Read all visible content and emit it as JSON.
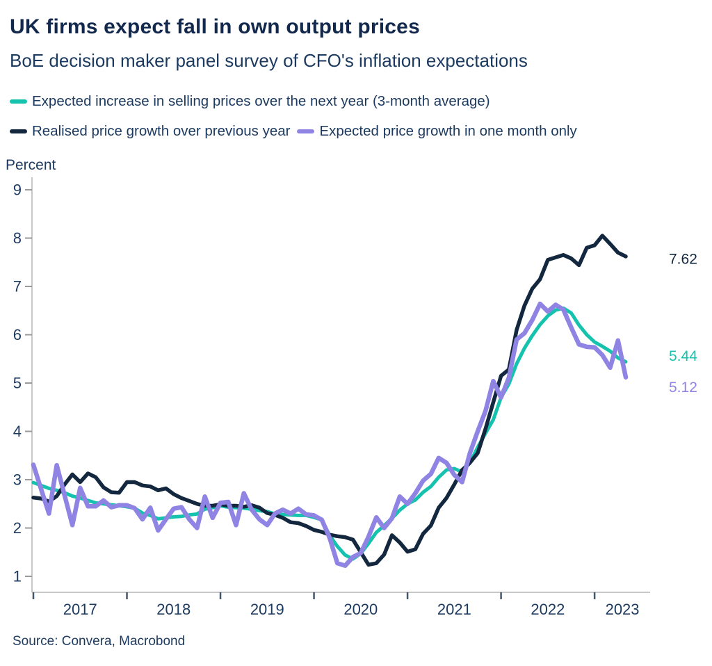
{
  "title": "UK firms expect fall in own output prices",
  "subtitle": "BoE decision maker panel survey of CFO's inflation expectations",
  "y_axis_title": "Percent",
  "source": "Source: Convera, Macrobond",
  "colors": {
    "navy": "#13283F",
    "teal": "#15C2AE",
    "purple": "#8F83E3",
    "title_text": "#12294D",
    "body_text": "#1C3A5F",
    "axis_line": "#C8C8C8",
    "y_tick": "#9A9A9A",
    "x_tick": "#44566B"
  },
  "legend": {
    "row1": [
      {
        "label": "Expected increase in selling prices over the next year (3-month average)",
        "color_key": "teal"
      }
    ],
    "row2": [
      {
        "label": "Realised price growth over previous year",
        "color_key": "navy"
      },
      {
        "label": "Expected price growth in one month only",
        "color_key": "purple"
      }
    ]
  },
  "end_labels": [
    {
      "text": "7.62",
      "value": 7.62,
      "color_key": "navy"
    },
    {
      "text": "5.44",
      "value": 5.44,
      "color_key": "teal"
    },
    {
      "text": "5.12",
      "value": 5.12,
      "color_key": "purple"
    }
  ],
  "chart_data": {
    "type": "line",
    "title": "UK firms expect fall in own output prices",
    "subtitle": "BoE decision maker panel survey of CFO's inflation expectations",
    "ylabel": "Percent",
    "ylim": [
      1,
      9
    ],
    "y_ticks": [
      9,
      8,
      7,
      6,
      5,
      4,
      3,
      2,
      1
    ],
    "x_frequency": "monthly",
    "x_start": "2017-01",
    "x_end": "2023-05",
    "x_tick_years": [
      "2017",
      "2018",
      "2019",
      "2020",
      "2021",
      "2022",
      "2023"
    ],
    "x_tick_month_indices": [
      0,
      12,
      24,
      36,
      48,
      60,
      72
    ],
    "grid": false,
    "legend_position": "top-left",
    "series": [
      {
        "name": "Expected increase in selling prices over the next year (3-month average)",
        "color_key": "teal",
        "end_value": 5.44,
        "values": [
          2.94,
          2.88,
          2.82,
          2.78,
          2.73,
          2.66,
          2.62,
          2.57,
          2.52,
          2.5,
          2.48,
          2.46,
          2.44,
          2.41,
          2.31,
          2.26,
          2.19,
          2.21,
          2.23,
          2.24,
          2.27,
          2.29,
          2.39,
          2.42,
          2.46,
          2.43,
          2.42,
          2.41,
          2.39,
          2.36,
          2.34,
          2.29,
          2.28,
          2.27,
          2.26,
          2.26,
          2.22,
          2.17,
          1.85,
          1.62,
          1.44,
          1.36,
          1.47,
          1.68,
          1.91,
          2.05,
          2.2,
          2.37,
          2.5,
          2.58,
          2.74,
          2.86,
          3.05,
          3.2,
          3.23,
          3.16,
          3.35,
          3.67,
          3.96,
          4.24,
          4.7,
          4.98,
          5.4,
          5.72,
          5.98,
          6.21,
          6.39,
          6.51,
          6.55,
          6.45,
          6.2,
          6.0,
          5.85,
          5.76,
          5.66,
          5.52,
          5.44
        ]
      },
      {
        "name": "Realised price growth over previous year",
        "color_key": "navy",
        "end_value": 7.62,
        "values": [
          2.63,
          2.61,
          2.55,
          2.66,
          2.9,
          3.11,
          2.95,
          3.13,
          3.05,
          2.84,
          2.74,
          2.73,
          2.95,
          2.95,
          2.88,
          2.86,
          2.78,
          2.82,
          2.7,
          2.62,
          2.56,
          2.5,
          2.46,
          2.46,
          2.49,
          2.46,
          2.46,
          2.44,
          2.47,
          2.42,
          2.31,
          2.27,
          2.21,
          2.12,
          2.1,
          2.04,
          1.96,
          1.92,
          1.86,
          1.83,
          1.81,
          1.76,
          1.5,
          1.24,
          1.27,
          1.45,
          1.85,
          1.7,
          1.51,
          1.56,
          1.88,
          2.05,
          2.42,
          2.62,
          2.9,
          3.2,
          3.35,
          3.55,
          4.05,
          4.6,
          5.15,
          5.28,
          6.1,
          6.6,
          6.95,
          7.15,
          7.55,
          7.6,
          7.65,
          7.58,
          7.44,
          7.8,
          7.85,
          8.05,
          7.88,
          7.7,
          7.62
        ]
      },
      {
        "name": "Expected price growth in one month only",
        "color_key": "purple",
        "end_value": 5.12,
        "values": [
          3.31,
          2.8,
          2.3,
          3.3,
          2.68,
          2.06,
          2.83,
          2.45,
          2.45,
          2.57,
          2.43,
          2.47,
          2.47,
          2.41,
          2.18,
          2.42,
          1.95,
          2.18,
          2.4,
          2.43,
          2.18,
          2.0,
          2.65,
          2.21,
          2.52,
          2.54,
          2.06,
          2.72,
          2.38,
          2.18,
          2.06,
          2.3,
          2.38,
          2.3,
          2.4,
          2.28,
          2.26,
          2.17,
          1.8,
          1.27,
          1.22,
          1.4,
          1.48,
          1.82,
          2.22,
          2.0,
          2.2,
          2.65,
          2.5,
          2.72,
          2.98,
          3.12,
          3.45,
          3.35,
          3.1,
          2.95,
          3.55,
          4.0,
          4.42,
          5.04,
          4.7,
          5.11,
          5.9,
          6.03,
          6.3,
          6.64,
          6.48,
          6.62,
          6.52,
          6.15,
          5.8,
          5.75,
          5.74,
          5.58,
          5.32,
          5.88,
          5.12
        ]
      }
    ]
  }
}
